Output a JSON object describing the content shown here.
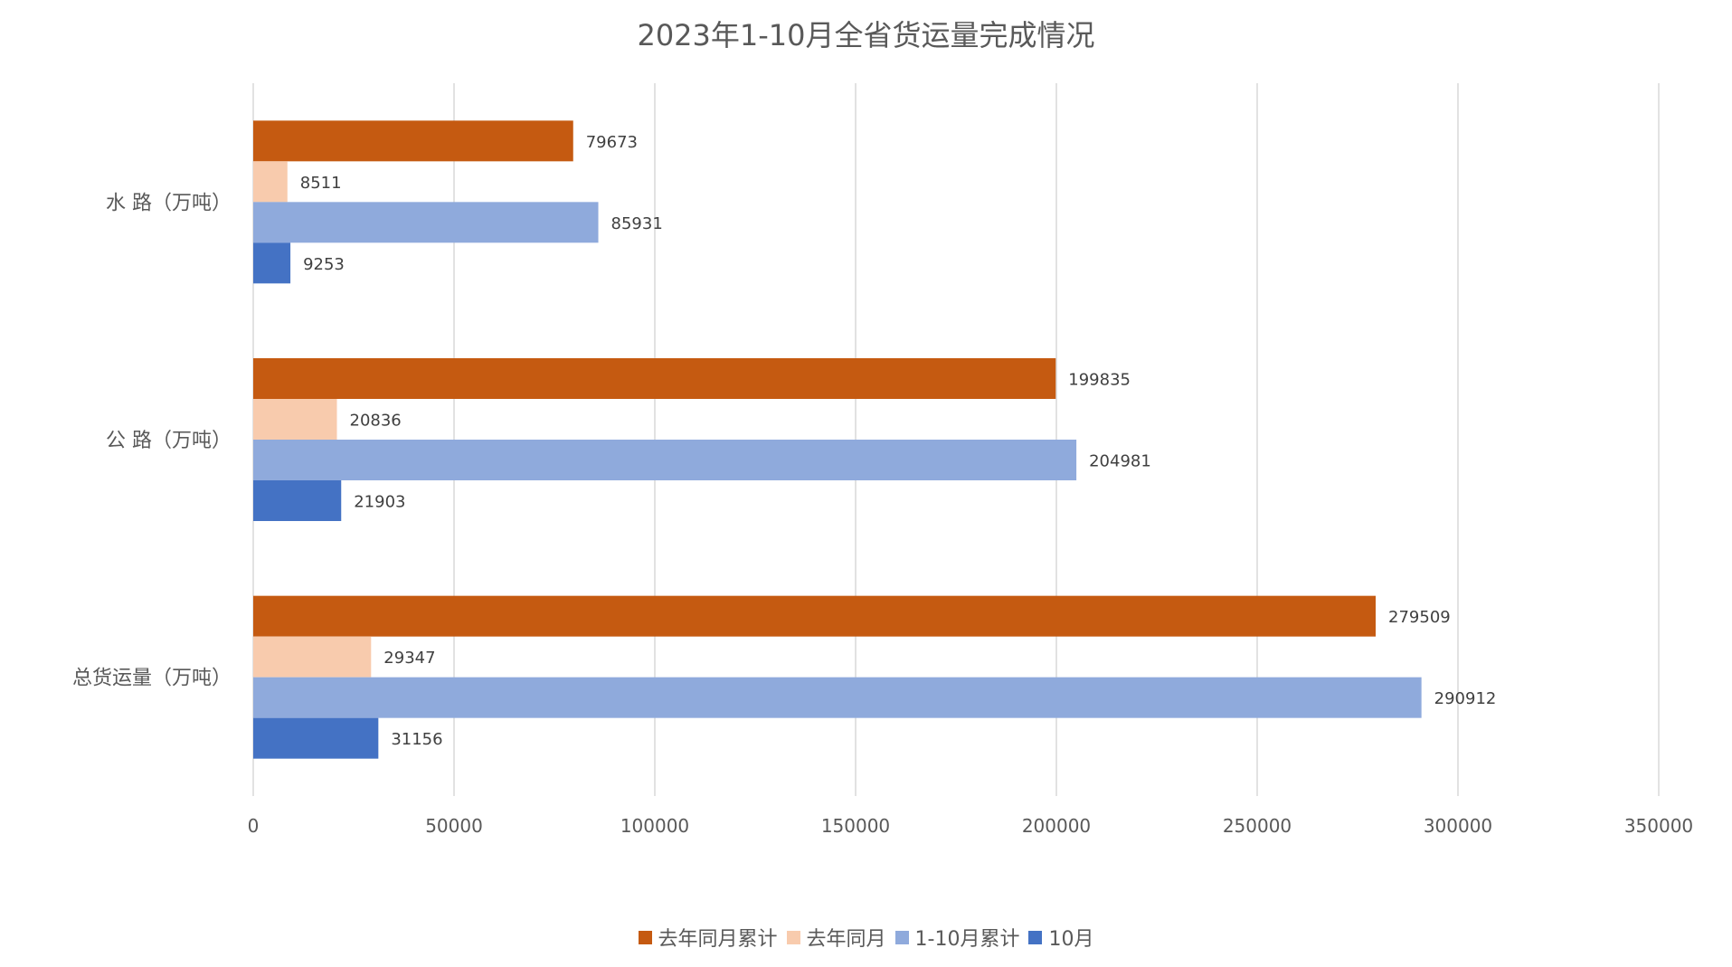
{
  "chart_data": {
    "type": "bar",
    "orientation": "horizontal",
    "title": "2023年1-10月全省货运量完成情况",
    "categories": [
      "水 路（万吨）",
      "公 路（万吨）",
      "总货运量（万吨）"
    ],
    "series": [
      {
        "name": "去年同月累计",
        "color": "#C55A11",
        "values": [
          79673,
          199835,
          279509
        ]
      },
      {
        "name": "去年同月",
        "color": "#F8CBAD",
        "values": [
          8511,
          20836,
          29347
        ]
      },
      {
        "name": "1-10月累计",
        "color": "#8FAADC",
        "values": [
          85931,
          204981,
          290912
        ]
      },
      {
        "name": "10月",
        "color": "#4472C4",
        "values": [
          9253,
          21903,
          31156
        ]
      }
    ],
    "xlim": [
      0,
      350000
    ],
    "xticks": [
      "0",
      "50000",
      "100000",
      "150000",
      "200000",
      "250000",
      "300000",
      "350000"
    ],
    "grid": true,
    "legend_position": "bottom",
    "data_labels": true
  }
}
